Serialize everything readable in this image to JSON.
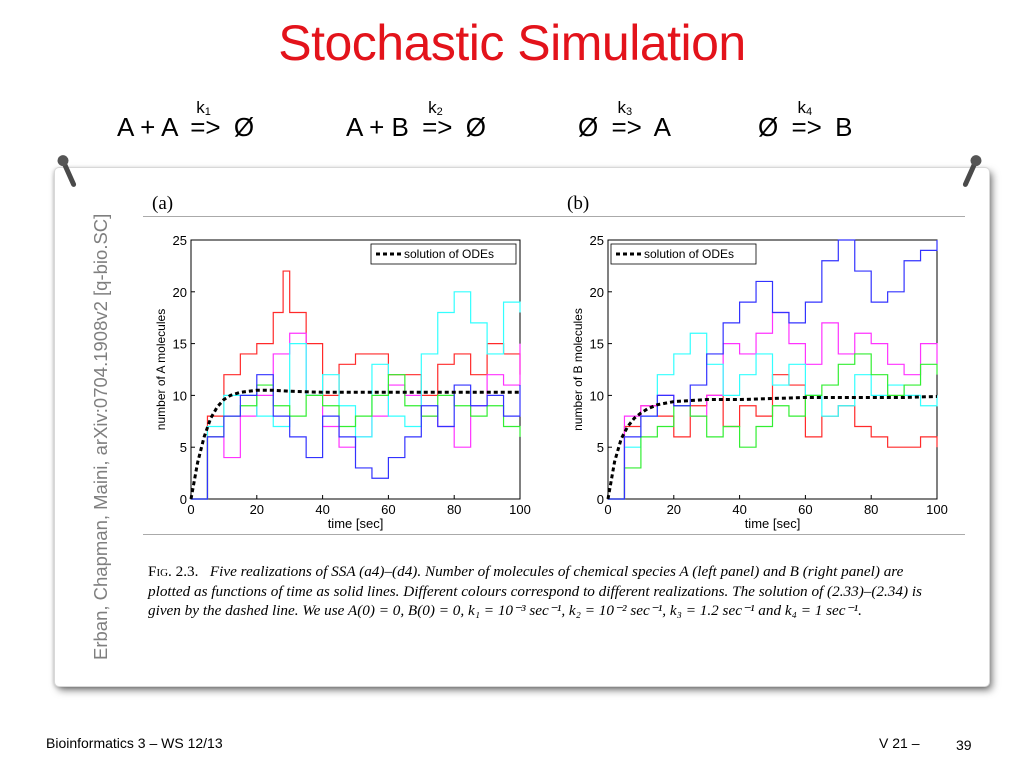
{
  "title": "Stochastic Simulation",
  "reactions": [
    {
      "lhs": "A + A",
      "rate": "k",
      "rate_sub": "1",
      "arrow": "=>",
      "rhs": "Ø"
    },
    {
      "lhs": "A + B",
      "rate": "k",
      "rate_sub": "2",
      "arrow": "=>",
      "rhs": "Ø"
    },
    {
      "lhs": "Ø",
      "rate": "k",
      "rate_sub": "3",
      "arrow": "=>",
      "rhs": "A"
    },
    {
      "lhs": "Ø",
      "rate": "k",
      "rate_sub": "4",
      "arrow": "=>",
      "rhs": "B"
    }
  ],
  "side_citation": "Erban, Chapman, Maini, arXiv:0704.1908v2 [q-bio.SC]",
  "figure": {
    "caption_fig": "Fig. 2.3.",
    "caption_text": "Five realizations of SSA (a4)–(d4). Number of molecules of chemical species A (left panel) and B (right panel) are plotted as functions of time as solid lines. Different colours correspond to different realizations. The solution of (2.33)–(2.34) is given by the dashed line. We use A(0) = 0, B(0) = 0, k₁ = 10⁻³ sec⁻¹, k₂ = 10⁻² sec⁻¹, k₃ = 1.2 sec⁻¹ and k₄ = 1 sec⁻¹."
  },
  "colors": {
    "title": "#e3131b",
    "series": [
      "#ff2a2a",
      "#ff33ff",
      "#33ffff",
      "#33ee33",
      "#3333ff"
    ]
  },
  "chart_data": [
    {
      "type": "line",
      "panel_label": "(a)",
      "xlabel": "time [sec]",
      "ylabel": "number of A molecules",
      "xlim": [
        0,
        100
      ],
      "ylim": [
        0,
        25
      ],
      "xticks": [
        0,
        20,
        40,
        60,
        80,
        100
      ],
      "yticks": [
        0,
        5,
        10,
        15,
        20,
        25
      ],
      "legend": "solution of ODEs",
      "legend_position": "top-right",
      "grid": false,
      "series": [
        {
          "color": "#ff2a2a",
          "style": "stairs",
          "x": [
            0,
            5,
            10,
            15,
            20,
            25,
            28,
            30,
            35,
            40,
            45,
            50,
            55,
            60,
            65,
            70,
            75,
            80,
            85,
            90,
            95,
            100
          ],
          "y": [
            0,
            8,
            12,
            14,
            15,
            18,
            22,
            18,
            15,
            10,
            13,
            14,
            14,
            12,
            12,
            10,
            13,
            14,
            12,
            15,
            14,
            12
          ]
        },
        {
          "color": "#ff33ff",
          "style": "stairs",
          "x": [
            0,
            5,
            10,
            15,
            20,
            25,
            30,
            35,
            40,
            45,
            50,
            55,
            60,
            65,
            70,
            75,
            80,
            85,
            90,
            95,
            100
          ],
          "y": [
            0,
            6,
            4,
            8,
            10,
            14,
            16,
            10,
            7,
            5,
            6,
            8,
            11,
            10,
            8,
            7,
            5,
            9,
            12,
            11,
            15
          ]
        },
        {
          "color": "#33ffff",
          "style": "stairs",
          "x": [
            0,
            5,
            10,
            15,
            20,
            25,
            30,
            35,
            40,
            45,
            50,
            55,
            60,
            65,
            70,
            75,
            80,
            85,
            90,
            95,
            100
          ],
          "y": [
            0,
            7,
            10,
            10,
            8,
            7,
            15,
            10,
            12,
            9,
            6,
            13,
            8,
            7,
            14,
            18,
            20,
            17,
            14,
            19,
            18
          ]
        },
        {
          "color": "#33ee33",
          "style": "stairs",
          "x": [
            0,
            5,
            10,
            15,
            20,
            25,
            30,
            35,
            40,
            45,
            50,
            55,
            60,
            65,
            70,
            75,
            80,
            85,
            90,
            95,
            100
          ],
          "y": [
            0,
            6,
            8,
            9,
            11,
            9,
            8,
            10,
            9,
            7,
            8,
            10,
            12,
            9,
            8,
            10,
            9,
            8,
            9,
            7,
            6
          ]
        },
        {
          "color": "#3333ff",
          "style": "stairs",
          "x": [
            0,
            5,
            10,
            15,
            20,
            25,
            30,
            35,
            40,
            45,
            50,
            55,
            60,
            65,
            70,
            75,
            80,
            85,
            90,
            95,
            100
          ],
          "y": [
            0,
            6,
            8,
            10,
            12,
            8,
            6,
            4,
            8,
            6,
            3,
            2,
            4,
            6,
            9,
            7,
            11,
            9,
            10,
            8,
            11
          ]
        },
        {
          "name": "solution of ODEs",
          "color": "#000000",
          "style": "dashed",
          "x": [
            0,
            2,
            4,
            6,
            8,
            10,
            12,
            15,
            20,
            25,
            30,
            40,
            50,
            60,
            70,
            80,
            90,
            100
          ],
          "y": [
            0,
            3.5,
            6,
            7.8,
            8.9,
            9.6,
            10.0,
            10.3,
            10.5,
            10.5,
            10.4,
            10.3,
            10.3,
            10.3,
            10.3,
            10.3,
            10.3,
            10.3
          ]
        }
      ]
    },
    {
      "type": "line",
      "panel_label": "(b)",
      "xlabel": "time [sec]",
      "ylabel": "number of B molecules",
      "xlim": [
        0,
        100
      ],
      "ylim": [
        0,
        25
      ],
      "xticks": [
        0,
        20,
        40,
        60,
        80,
        100
      ],
      "yticks": [
        0,
        5,
        10,
        15,
        20,
        25
      ],
      "legend": "solution of ODEs",
      "legend_position": "top-left",
      "grid": false,
      "series": [
        {
          "color": "#ff2a2a",
          "style": "stairs",
          "x": [
            0,
            5,
            10,
            15,
            20,
            25,
            30,
            35,
            40,
            45,
            50,
            55,
            60,
            65,
            70,
            75,
            80,
            85,
            90,
            95,
            100
          ],
          "y": [
            0,
            7,
            9,
            8,
            6,
            9,
            10,
            7,
            9,
            8,
            12,
            11,
            6,
            8,
            9,
            7,
            6,
            5,
            5,
            6,
            5
          ]
        },
        {
          "color": "#ff33ff",
          "style": "stairs",
          "x": [
            0,
            5,
            10,
            15,
            20,
            25,
            30,
            35,
            40,
            45,
            50,
            55,
            60,
            65,
            70,
            75,
            80,
            85,
            90,
            95,
            100
          ],
          "y": [
            0,
            8,
            9,
            10,
            9,
            8,
            10,
            15,
            14,
            16,
            18,
            15,
            13,
            17,
            14,
            16,
            15,
            13,
            12,
            15,
            13
          ]
        },
        {
          "color": "#33ffff",
          "style": "stairs",
          "x": [
            0,
            5,
            10,
            15,
            20,
            25,
            30,
            35,
            40,
            45,
            50,
            55,
            60,
            65,
            70,
            75,
            80,
            85,
            90,
            95,
            100
          ],
          "y": [
            0,
            5,
            8,
            12,
            14,
            16,
            13,
            10,
            12,
            14,
            11,
            13,
            10,
            8,
            9,
            12,
            10,
            11,
            10,
            9,
            10
          ]
        },
        {
          "color": "#33ee33",
          "style": "stairs",
          "x": [
            0,
            5,
            10,
            15,
            20,
            25,
            30,
            35,
            40,
            45,
            50,
            55,
            60,
            65,
            70,
            75,
            80,
            85,
            90,
            95,
            100
          ],
          "y": [
            0,
            3,
            6,
            7,
            9,
            8,
            6,
            7,
            5,
            7,
            9,
            8,
            10,
            11,
            13,
            14,
            12,
            10,
            11,
            13,
            12
          ]
        },
        {
          "color": "#3333ff",
          "style": "stairs",
          "x": [
            0,
            5,
            10,
            15,
            20,
            25,
            30,
            35,
            40,
            45,
            50,
            55,
            60,
            65,
            70,
            75,
            80,
            85,
            90,
            95,
            100
          ],
          "y": [
            0,
            6,
            8,
            10,
            9,
            11,
            14,
            17,
            19,
            21,
            18,
            17,
            19,
            23,
            25,
            22,
            19,
            20,
            23,
            24,
            25
          ]
        },
        {
          "name": "solution of ODEs",
          "color": "#000000",
          "style": "dashed",
          "x": [
            0,
            2,
            4,
            6,
            8,
            10,
            12,
            15,
            20,
            25,
            30,
            40,
            50,
            60,
            70,
            80,
            90,
            100
          ],
          "y": [
            0,
            3.6,
            5.8,
            7.0,
            7.8,
            8.3,
            8.7,
            9.1,
            9.4,
            9.5,
            9.6,
            9.6,
            9.7,
            9.8,
            9.8,
            9.8,
            9.8,
            9.9
          ]
        }
      ]
    }
  ],
  "footer": {
    "left": "Bioinformatics 3 – WS 12/13",
    "version": "V 21",
    "dash": "–",
    "page": "39"
  }
}
